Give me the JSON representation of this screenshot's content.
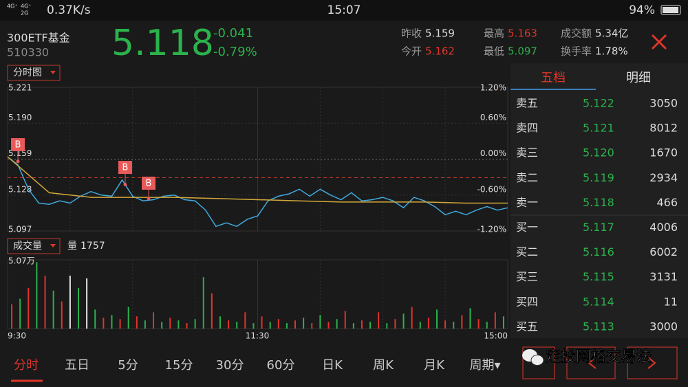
{
  "status_bar": {
    "network": [
      "4G⁺",
      "4G⁺",
      "2G"
    ],
    "speed": "0.37K/s",
    "time": "15:07",
    "battery": "94%"
  },
  "header": {
    "name": "300ETF基金",
    "code": "510330",
    "price": "5.118",
    "change": "-0.041",
    "change_pct": "-0.79%",
    "stats": [
      {
        "label": "昨收",
        "value": "5.159",
        "color": "#dddddd"
      },
      {
        "label": "今开",
        "value": "5.162",
        "color": "#e0352b"
      },
      {
        "label": "最高",
        "value": "5.163",
        "color": "#e0352b"
      },
      {
        "label": "最低",
        "value": "5.097",
        "color": "#2bb24c"
      },
      {
        "label": "成交额",
        "value": "5.34亿",
        "color": "#dddddd"
      },
      {
        "label": "换手率",
        "value": "1.78%",
        "color": "#dddddd"
      }
    ]
  },
  "price_chart": {
    "selector": "分时图",
    "ylim": [
      5.097,
      5.221
    ],
    "yticks": [
      5.221,
      {
        "value": 5.19,
        "label": "5.190"
      },
      5.159,
      5.128,
      5.097
    ],
    "y2lim": [
      -1.2,
      1.2
    ],
    "y2ticks": [
      {
        "value": 1.2,
        "label": "1.20%"
      },
      {
        "value": 0.6,
        "label": "0.60%"
      },
      {
        "value": 0,
        "label": "0.00%"
      },
      {
        "value": -0.6,
        "label": "-0.60%"
      },
      {
        "value": -1.2,
        "label": "-1.20%"
      }
    ],
    "times": [
      "9:30",
      "11:30",
      "15:00"
    ],
    "reference_line": 5.143,
    "series": [
      {
        "name": "price",
        "color": "#3fa9e0",
        "values": [
          5.161,
          5.154,
          5.133,
          5.121,
          5.12,
          5.123,
          5.121,
          5.127,
          5.131,
          5.128,
          5.127,
          5.141,
          5.127,
          5.123,
          5.124,
          5.127,
          5.128,
          5.124,
          5.123,
          5.115,
          5.101,
          5.104,
          5.101,
          5.107,
          5.11,
          5.123,
          5.127,
          5.129,
          5.133,
          5.127,
          5.133,
          5.128,
          5.124,
          5.13,
          5.123,
          5.124,
          5.126,
          5.123,
          5.117,
          5.126,
          5.123,
          5.118,
          5.111,
          5.114,
          5.111,
          5.115,
          5.118,
          5.115,
          5.117
        ]
      },
      {
        "name": "average",
        "color": "#d4a83a",
        "values": [
          5.161,
          5.13,
          5.126,
          5.126,
          5.126,
          5.125,
          5.124,
          5.123,
          5.122,
          5.122,
          5.122,
          5.121,
          5.121
        ]
      }
    ],
    "buy_points": [
      {
        "label": "B",
        "value": 5.157
      },
      {
        "label": "B",
        "value": 5.137
      },
      {
        "label": "B",
        "value": 5.125
      }
    ]
  },
  "volume_chart": {
    "selector": "成交量",
    "current_label": "量",
    "current_value": "1757",
    "ylim": [
      0,
      50700
    ],
    "yticks": [
      {
        "value": 50700,
        "label": "5.07万"
      }
    ],
    "values": [
      18000,
      22000,
      30000,
      49000,
      39000,
      28000,
      20000,
      39000,
      30000,
      37000,
      14000,
      8000,
      10000,
      7000,
      16000,
      9000,
      6000,
      12000,
      5000,
      8000,
      6000,
      4000,
      7000,
      38000,
      26000,
      9000,
      6000,
      5000,
      12000,
      4000,
      9000,
      5000,
      7000,
      4000,
      6000,
      8000,
      4000,
      10000,
      5000,
      7000,
      13000,
      4000,
      6000,
      5000,
      12000,
      4000,
      7000,
      11000,
      16000,
      5000,
      8000,
      14000,
      6000,
      5000,
      10000,
      15000,
      7000,
      5000,
      12000,
      9000
    ],
    "colors": [
      "#e0352b",
      "#2bb24c",
      "#e0352b",
      "#2bb24c",
      "#e0352b",
      "#2bb24c",
      "#e0352b",
      "#e6e6e6",
      "#2bb24c",
      "#e6e6e6",
      "#2bb24c",
      "#e0352b",
      "#2bb24c",
      "#e0352b",
      "#2bb24c",
      "#e0352b",
      "#2bb24c",
      "#e0352b",
      "#2bb24c",
      "#e0352b",
      "#2bb24c",
      "#e0352b",
      "#2bb24c",
      "#2bb24c",
      "#e0352b",
      "#2bb24c",
      "#e0352b",
      "#2bb24c",
      "#e0352b",
      "#2bb24c",
      "#e0352b",
      "#2bb24c",
      "#e0352b",
      "#2bb24c",
      "#e0352b",
      "#2bb24c",
      "#e0352b",
      "#2bb24c",
      "#e0352b",
      "#2bb24c",
      "#e0352b",
      "#2bb24c",
      "#e0352b",
      "#2bb24c",
      "#e0352b",
      "#2bb24c",
      "#e0352b",
      "#2bb24c",
      "#e0352b",
      "#2bb24c",
      "#e0352b",
      "#2bb24c",
      "#e0352b",
      "#2bb24c",
      "#e0352b",
      "#2bb24c",
      "#e0352b",
      "#2bb24c",
      "#e0352b",
      "#2bb24c"
    ]
  },
  "order_book": {
    "tabs": [
      "五档",
      "明细"
    ],
    "rows": [
      {
        "label": "卖五",
        "price": "5.122",
        "volume": "3050"
      },
      {
        "label": "卖四",
        "price": "5.121",
        "volume": "8012"
      },
      {
        "label": "卖三",
        "price": "5.120",
        "volume": "1670"
      },
      {
        "label": "卖二",
        "price": "5.119",
        "volume": "2934"
      },
      {
        "label": "卖一",
        "price": "5.118",
        "volume": "466"
      },
      {
        "label": "买一",
        "price": "5.117",
        "volume": "4006"
      },
      {
        "label": "买二",
        "price": "5.116",
        "volume": "6002"
      },
      {
        "label": "买三",
        "price": "5.115",
        "volume": "3131"
      },
      {
        "label": "买四",
        "price": "5.114",
        "volume": "11"
      },
      {
        "label": "买五",
        "price": "5.113",
        "volume": "3000"
      }
    ]
  },
  "period_tabs": [
    "分时",
    "五日",
    "5分",
    "15分",
    "30分",
    "60分",
    "日K",
    "周K",
    "月K",
    "周期▾"
  ],
  "watermark": "定投网格交易法"
}
